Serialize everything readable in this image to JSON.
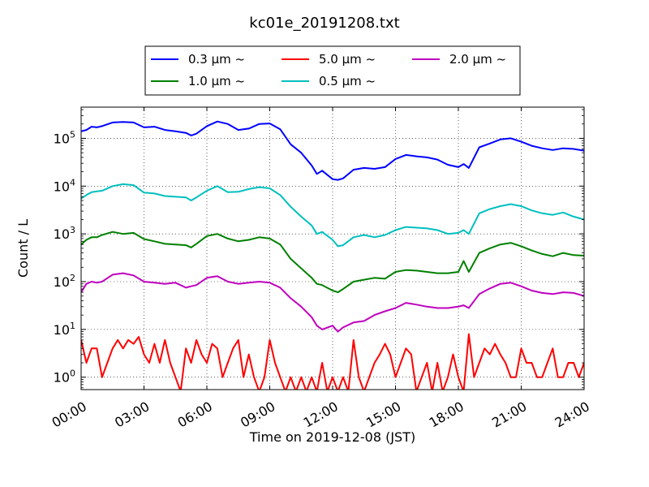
{
  "chart_data": {
    "type": "line",
    "title": "kc01e_20191208.txt",
    "xlabel": "Time on 2019-12-08 (JST)",
    "ylabel": "Count / L",
    "yscale": "log",
    "xlim": [
      0,
      24
    ],
    "ylim": [
      0.55,
      450000
    ],
    "grid": true,
    "legend_position": "top (above plot)",
    "x_ticks": [
      0,
      3,
      6,
      9,
      12,
      15,
      18,
      21,
      24
    ],
    "x_tick_labels": [
      "00:00",
      "03:00",
      "06:00",
      "09:00",
      "12:00",
      "15:00",
      "18:00",
      "21:00",
      "24:00"
    ],
    "y_ticks": [
      1,
      10,
      100,
      1000,
      10000,
      100000
    ],
    "y_tick_labels": [
      {
        "base": "10",
        "exp": "0"
      },
      {
        "base": "10",
        "exp": "1"
      },
      {
        "base": "10",
        "exp": "2"
      },
      {
        "base": "10",
        "exp": "3"
      },
      {
        "base": "10",
        "exp": "4"
      },
      {
        "base": "10",
        "exp": "5"
      }
    ],
    "legend": [
      {
        "label": "0.3 μm ~",
        "series": 0
      },
      {
        "label": "1.0 μm ~",
        "series": 2
      },
      {
        "label": "5.0 μm ~",
        "series": 4
      },
      {
        "label": "0.5 μm ~",
        "series": 1
      },
      {
        "label": "2.0 μm ~",
        "series": 3
      }
    ],
    "series": [
      {
        "name": "0.3 μm ~",
        "color": "#0000ff",
        "x": [
          0,
          0.25,
          0.5,
          0.75,
          1,
          1.5,
          2,
          2.5,
          3,
          3.5,
          4,
          4.5,
          5,
          5.25,
          5.5,
          6,
          6.5,
          7,
          7.5,
          8,
          8.5,
          9,
          9.5,
          10,
          10.5,
          11,
          11.25,
          11.5,
          12,
          12.25,
          12.5,
          13,
          13.5,
          14,
          14.5,
          15,
          15.5,
          16,
          16.5,
          17,
          17.5,
          18,
          18.25,
          18.5,
          19,
          19.5,
          20,
          20.5,
          21,
          21.5,
          22,
          22.5,
          23,
          23.5,
          24
        ],
        "values": [
          140000,
          150000,
          175000,
          170000,
          180000,
          215000,
          220000,
          215000,
          170000,
          175000,
          150000,
          140000,
          130000,
          115000,
          125000,
          180000,
          225000,
          200000,
          150000,
          160000,
          200000,
          205000,
          155000,
          75000,
          50000,
          27000,
          18000,
          21000,
          14000,
          13500,
          14500,
          22000,
          24000,
          23000,
          25000,
          37000,
          45000,
          42000,
          40000,
          36000,
          28000,
          25000,
          29000,
          24000,
          65000,
          78000,
          95000,
          100000,
          85000,
          70000,
          62000,
          57000,
          62000,
          60000,
          55000
        ]
      },
      {
        "name": "0.5 μm ~",
        "color": "#00bfbf",
        "x": [
          0,
          0.25,
          0.5,
          0.75,
          1,
          1.5,
          2,
          2.5,
          3,
          3.5,
          4,
          4.5,
          5,
          5.25,
          5.5,
          6,
          6.5,
          7,
          7.5,
          8,
          8.5,
          9,
          9.5,
          10,
          10.5,
          11,
          11.25,
          11.5,
          12,
          12.25,
          12.5,
          13,
          13.5,
          14,
          14.5,
          15,
          15.5,
          16,
          16.5,
          17,
          17.5,
          18,
          18.25,
          18.5,
          19,
          19.5,
          20,
          20.5,
          21,
          21.5,
          22,
          22.5,
          23,
          23.5,
          24
        ],
        "values": [
          5500,
          6500,
          7500,
          7800,
          8000,
          10000,
          11000,
          10500,
          7300,
          7000,
          6200,
          6000,
          5800,
          5000,
          5800,
          8000,
          10000,
          7500,
          7600,
          8700,
          9500,
          9000,
          6500,
          3700,
          2300,
          1500,
          1000,
          1100,
          750,
          550,
          580,
          850,
          950,
          850,
          950,
          1200,
          1400,
          1350,
          1300,
          1200,
          1000,
          1050,
          1200,
          1000,
          2700,
          3300,
          3800,
          4200,
          3800,
          3100,
          2700,
          2500,
          2800,
          2300,
          2000
        ]
      },
      {
        "name": "1.0 μm ~",
        "color": "#008000",
        "x": [
          0,
          0.25,
          0.5,
          0.75,
          1,
          1.5,
          2,
          2.5,
          3,
          3.5,
          4,
          4.5,
          5,
          5.25,
          5.5,
          6,
          6.5,
          7,
          7.5,
          8,
          8.5,
          9,
          9.5,
          10,
          10.5,
          11,
          11.25,
          11.5,
          12,
          12.25,
          12.5,
          13,
          13.5,
          14,
          14.5,
          15,
          15.5,
          16,
          16.5,
          17,
          17.5,
          18,
          18.25,
          18.5,
          19,
          19.5,
          20,
          20.5,
          21,
          21.5,
          22,
          22.5,
          23,
          23.5,
          24
        ],
        "values": [
          600,
          750,
          850,
          850,
          950,
          1100,
          1000,
          1050,
          780,
          700,
          620,
          600,
          580,
          520,
          620,
          900,
          1000,
          800,
          700,
          750,
          850,
          800,
          600,
          300,
          190,
          120,
          90,
          85,
          65,
          60,
          70,
          100,
          110,
          120,
          115,
          160,
          175,
          170,
          160,
          150,
          150,
          160,
          270,
          160,
          400,
          500,
          600,
          650,
          550,
          450,
          380,
          340,
          400,
          360,
          350
        ]
      },
      {
        "name": "2.0 μm ~",
        "color": "#bf00bf",
        "x": [
          0,
          0.25,
          0.5,
          0.75,
          1,
          1.5,
          2,
          2.5,
          3,
          3.5,
          4,
          4.5,
          5,
          5.25,
          5.5,
          6,
          6.5,
          7,
          7.5,
          8,
          8.5,
          9,
          9.5,
          10,
          10.5,
          11,
          11.25,
          11.5,
          12,
          12.25,
          12.5,
          13,
          13.5,
          14,
          14.5,
          15,
          15.5,
          16,
          16.5,
          17,
          17.5,
          18,
          18.25,
          18.5,
          19,
          19.5,
          20,
          20.5,
          21,
          21.5,
          22,
          22.5,
          23,
          23.5,
          24
        ],
        "values": [
          60,
          90,
          100,
          95,
          100,
          140,
          150,
          135,
          100,
          95,
          90,
          95,
          75,
          80,
          85,
          120,
          130,
          100,
          90,
          95,
          100,
          95,
          75,
          45,
          30,
          18,
          12,
          10,
          12,
          9,
          11,
          14,
          15,
          20,
          24,
          28,
          36,
          33,
          30,
          28,
          28,
          30,
          32,
          28,
          55,
          72,
          90,
          95,
          80,
          65,
          58,
          55,
          60,
          58,
          50
        ]
      },
      {
        "name": "5.0 μm ~",
        "color": "#ff0000",
        "x": [
          0,
          0.25,
          0.5,
          0.75,
          1,
          1.25,
          1.5,
          1.75,
          2,
          2.25,
          2.5,
          2.75,
          3,
          3.25,
          3.5,
          3.75,
          4,
          4.25,
          4.5,
          4.75,
          5,
          5.25,
          5.5,
          5.75,
          6,
          6.25,
          6.5,
          6.75,
          7,
          7.25,
          7.5,
          7.75,
          8,
          8.25,
          8.5,
          8.75,
          9,
          9.25,
          9.5,
          9.75,
          10,
          10.25,
          10.5,
          10.75,
          11,
          11.25,
          11.5,
          11.75,
          12,
          12.25,
          12.5,
          12.75,
          13,
          13.25,
          13.5,
          13.75,
          14,
          14.25,
          14.5,
          14.75,
          15,
          15.25,
          15.5,
          15.75,
          16,
          16.25,
          16.5,
          16.75,
          17,
          17.25,
          17.5,
          17.75,
          18,
          18.25,
          18.5,
          18.75,
          19,
          19.25,
          19.5,
          19.75,
          20,
          20.25,
          20.5,
          20.75,
          21,
          21.25,
          21.5,
          21.75,
          22,
          22.25,
          22.5,
          22.75,
          23,
          23.25,
          23.5,
          23.75,
          24
        ],
        "values": [
          6,
          2,
          4,
          4,
          1,
          2,
          4,
          6,
          4,
          6,
          5,
          7,
          3,
          2,
          5,
          2,
          6,
          2,
          1,
          0.5,
          4,
          2,
          6,
          3,
          2,
          5,
          4,
          1,
          2,
          4,
          6,
          1,
          3,
          1,
          0.5,
          1,
          6,
          2,
          1,
          0.5,
          1,
          0.5,
          1,
          0.5,
          1,
          0.5,
          2,
          0.5,
          1,
          0.5,
          1,
          0.5,
          6,
          1,
          0.5,
          1,
          2,
          3,
          5,
          3,
          1,
          2,
          4,
          3,
          0.5,
          1,
          2,
          0.5,
          2,
          0.5,
          1,
          3,
          1,
          0.5,
          8,
          1,
          2,
          4,
          3,
          5,
          3,
          2,
          1,
          1,
          4,
          2,
          2,
          1,
          1,
          2,
          4,
          1,
          1,
          2,
          2,
          1,
          2
        ]
      }
    ]
  }
}
